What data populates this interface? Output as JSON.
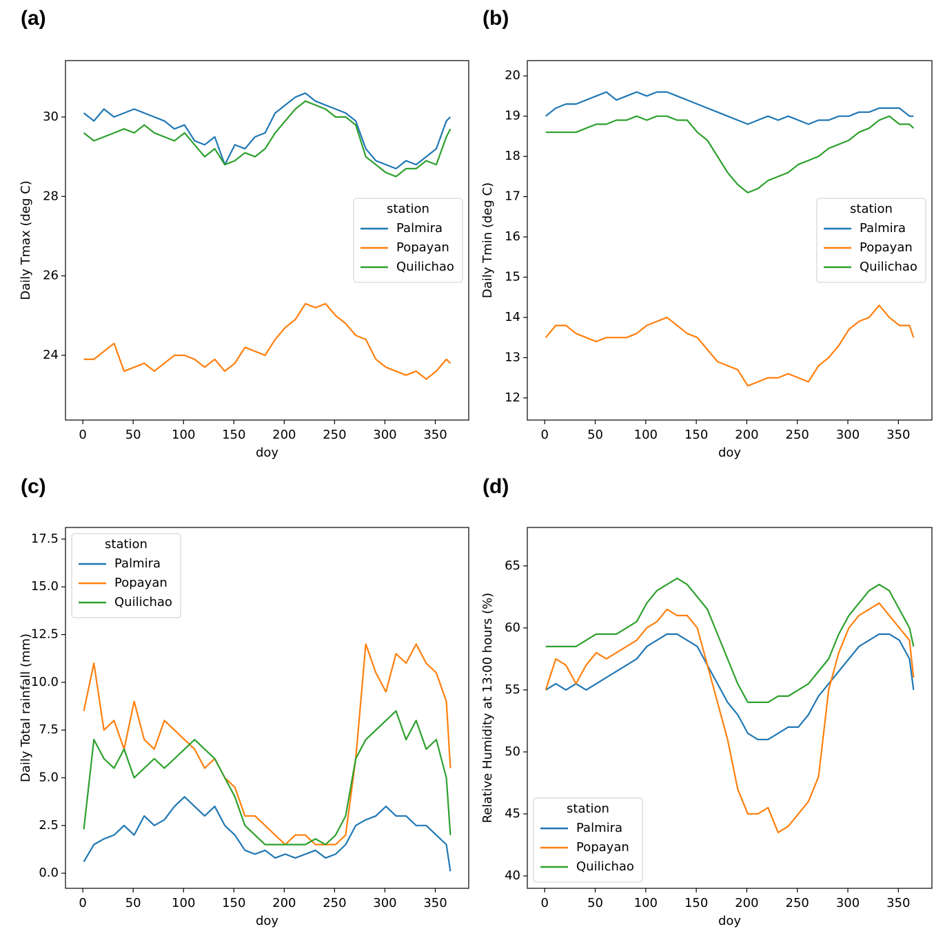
{
  "chart_data": [
    {
      "type": "line",
      "label": "(a)",
      "xlabel": "doy",
      "ylabel": "Daily Tmax (deg C)",
      "legend_title": "station",
      "legend": "center right",
      "x": [
        1,
        11,
        21,
        31,
        41,
        51,
        61,
        71,
        81,
        91,
        101,
        111,
        121,
        131,
        141,
        151,
        161,
        171,
        181,
        191,
        201,
        211,
        221,
        231,
        241,
        251,
        261,
        271,
        281,
        291,
        301,
        311,
        321,
        331,
        341,
        351,
        361,
        365
      ],
      "xlim": [
        -17.2,
        383.2
      ],
      "xticks": [
        0,
        50,
        100,
        150,
        200,
        250,
        300,
        350
      ],
      "ylim": [
        22.37,
        31.42
      ],
      "yticks": [
        24,
        26,
        28,
        30
      ],
      "series": [
        {
          "name": "Palmira",
          "color": "#1f77b4",
          "values": [
            30.1,
            29.9,
            30.2,
            30.0,
            30.1,
            30.2,
            30.1,
            30.0,
            29.9,
            29.7,
            29.8,
            29.4,
            29.3,
            29.5,
            28.8,
            29.3,
            29.2,
            29.5,
            29.6,
            30.1,
            30.3,
            30.5,
            30.6,
            30.4,
            30.3,
            30.2,
            30.1,
            29.9,
            29.2,
            28.9,
            28.8,
            28.7,
            28.9,
            28.8,
            29.0,
            29.2,
            29.9,
            30.0
          ]
        },
        {
          "name": "Popayan",
          "color": "#ff7f0e",
          "values": [
            23.9,
            23.9,
            24.1,
            24.3,
            23.6,
            23.7,
            23.8,
            23.6,
            23.8,
            24.0,
            24.0,
            23.9,
            23.7,
            23.9,
            23.6,
            23.8,
            24.2,
            24.1,
            24.0,
            24.4,
            24.7,
            24.9,
            25.3,
            25.2,
            25.3,
            25.0,
            24.8,
            24.5,
            24.4,
            23.9,
            23.7,
            23.6,
            23.5,
            23.6,
            23.4,
            23.6,
            23.9,
            23.8
          ]
        },
        {
          "name": "Quilichao",
          "color": "#2ca02c",
          "values": [
            29.6,
            29.4,
            29.5,
            29.6,
            29.7,
            29.6,
            29.8,
            29.6,
            29.5,
            29.4,
            29.6,
            29.3,
            29.0,
            29.2,
            28.8,
            28.9,
            29.1,
            29.0,
            29.2,
            29.6,
            29.9,
            30.2,
            30.4,
            30.3,
            30.2,
            30.0,
            30.0,
            29.8,
            29.0,
            28.8,
            28.6,
            28.5,
            28.7,
            28.7,
            28.9,
            28.8,
            29.5,
            29.7
          ]
        }
      ]
    },
    {
      "type": "line",
      "label": "(b)",
      "xlabel": "doy",
      "ylabel": "Daily Tmin (deg C)",
      "legend_title": "station",
      "legend": "center right",
      "x": [
        1,
        11,
        21,
        31,
        41,
        51,
        61,
        71,
        81,
        91,
        101,
        111,
        121,
        131,
        141,
        151,
        161,
        171,
        181,
        191,
        201,
        211,
        221,
        231,
        241,
        251,
        261,
        271,
        281,
        291,
        301,
        311,
        321,
        331,
        341,
        351,
        361,
        365
      ],
      "xlim": [
        -17.2,
        383.2
      ],
      "xticks": [
        0,
        50,
        100,
        150,
        200,
        250,
        300,
        350
      ],
      "ylim": [
        11.45,
        20.38
      ],
      "yticks": [
        12,
        13,
        14,
        15,
        16,
        17,
        18,
        19,
        20
      ],
      "series": [
        {
          "name": "Palmira",
          "color": "#1f77b4",
          "values": [
            19.0,
            19.2,
            19.3,
            19.3,
            19.4,
            19.5,
            19.6,
            19.4,
            19.5,
            19.6,
            19.5,
            19.6,
            19.6,
            19.5,
            19.4,
            19.3,
            19.2,
            19.1,
            19.0,
            18.9,
            18.8,
            18.9,
            19.0,
            18.9,
            19.0,
            18.9,
            18.8,
            18.9,
            18.9,
            19.0,
            19.0,
            19.1,
            19.1,
            19.2,
            19.2,
            19.2,
            19.0,
            19.0
          ]
        },
        {
          "name": "Popayan",
          "color": "#ff7f0e",
          "values": [
            13.5,
            13.8,
            13.8,
            13.6,
            13.5,
            13.4,
            13.5,
            13.5,
            13.5,
            13.6,
            13.8,
            13.9,
            14.0,
            13.8,
            13.6,
            13.5,
            13.2,
            12.9,
            12.8,
            12.7,
            12.3,
            12.4,
            12.5,
            12.5,
            12.6,
            12.5,
            12.4,
            12.8,
            13.0,
            13.3,
            13.7,
            13.9,
            14.0,
            14.3,
            14.0,
            13.8,
            13.8,
            13.5
          ]
        },
        {
          "name": "Quilichao",
          "color": "#2ca02c",
          "values": [
            18.6,
            18.6,
            18.6,
            18.6,
            18.7,
            18.8,
            18.8,
            18.9,
            18.9,
            19.0,
            18.9,
            19.0,
            19.0,
            18.9,
            18.9,
            18.6,
            18.4,
            18.0,
            17.6,
            17.3,
            17.1,
            17.2,
            17.4,
            17.5,
            17.6,
            17.8,
            17.9,
            18.0,
            18.2,
            18.3,
            18.4,
            18.6,
            18.7,
            18.9,
            19.0,
            18.8,
            18.8,
            18.7
          ]
        }
      ]
    },
    {
      "type": "line",
      "label": "(c)",
      "xlabel": "doy",
      "ylabel": "Daily Total rainfall (mm)",
      "legend_title": "station",
      "legend": "upper left",
      "x": [
        1,
        11,
        21,
        31,
        41,
        51,
        61,
        71,
        81,
        91,
        101,
        111,
        121,
        131,
        141,
        151,
        161,
        171,
        181,
        191,
        201,
        211,
        221,
        231,
        241,
        251,
        261,
        271,
        281,
        291,
        301,
        311,
        321,
        331,
        341,
        351,
        361,
        365
      ],
      "xlim": [
        -17.2,
        383.2
      ],
      "xticks": [
        0,
        50,
        100,
        150,
        200,
        250,
        300,
        350
      ],
      "ylim": [
        -0.79,
        18.11
      ],
      "yticks": [
        {
          "value": 0,
          "label": "0.0"
        },
        2.5,
        {
          "value": 5,
          "label": "5.0"
        },
        7.5,
        {
          "value": 10,
          "label": "10.0"
        },
        12.5,
        {
          "value": 15,
          "label": "15.0"
        },
        17.5
      ],
      "series": [
        {
          "name": "Palmira",
          "color": "#1f77b4",
          "values": [
            0.6,
            1.5,
            1.8,
            2.0,
            2.5,
            2.0,
            3.0,
            2.5,
            2.8,
            3.5,
            4.0,
            3.5,
            3.0,
            3.5,
            2.5,
            2.0,
            1.2,
            1.0,
            1.2,
            0.8,
            1.0,
            0.8,
            1.0,
            1.2,
            0.8,
            1.0,
            1.5,
            2.5,
            2.8,
            3.0,
            3.5,
            3.0,
            3.0,
            2.5,
            2.5,
            2.0,
            1.5,
            0.1
          ]
        },
        {
          "name": "Popayan",
          "color": "#ff7f0e",
          "values": [
            8.5,
            11.0,
            7.5,
            8.0,
            6.5,
            9.0,
            7.0,
            6.5,
            8.0,
            7.5,
            7.0,
            6.5,
            5.5,
            6.0,
            5.0,
            4.5,
            3.0,
            3.0,
            2.5,
            2.0,
            1.5,
            2.0,
            2.0,
            1.5,
            1.5,
            1.5,
            2.0,
            6.0,
            12.0,
            10.5,
            9.5,
            11.5,
            11.0,
            12.0,
            11.0,
            10.5,
            9.0,
            5.5
          ]
        },
        {
          "name": "Quilichao",
          "color": "#2ca02c",
          "values": [
            2.3,
            7.0,
            6.0,
            5.5,
            6.5,
            5.0,
            5.5,
            6.0,
            5.5,
            6.0,
            6.5,
            7.0,
            6.5,
            6.0,
            5.0,
            4.0,
            2.5,
            2.0,
            1.5,
            1.5,
            1.5,
            1.5,
            1.5,
            1.8,
            1.5,
            2.0,
            3.0,
            6.0,
            7.0,
            7.5,
            8.0,
            8.5,
            7.0,
            8.0,
            6.5,
            7.0,
            5.0,
            2.0
          ]
        }
      ]
    },
    {
      "type": "line",
      "label": "(d)",
      "xlabel": "doy",
      "ylabel": "Relative Humidity at 13:00 hours (%)",
      "legend_title": "station",
      "legend": "lower left",
      "x": [
        1,
        11,
        21,
        31,
        41,
        51,
        61,
        71,
        81,
        91,
        101,
        111,
        121,
        131,
        141,
        151,
        161,
        171,
        181,
        191,
        201,
        211,
        221,
        231,
        241,
        251,
        261,
        271,
        281,
        291,
        301,
        311,
        321,
        331,
        341,
        351,
        361,
        365
      ],
      "xlim": [
        -17.2,
        383.2
      ],
      "xticks": [
        0,
        50,
        100,
        150,
        200,
        250,
        300,
        350
      ],
      "ylim": [
        39.0,
        68.1
      ],
      "yticks": [
        40,
        45,
        50,
        55,
        60,
        65
      ],
      "series": [
        {
          "name": "Palmira",
          "color": "#1f77b4",
          "values": [
            55.0,
            55.5,
            55.0,
            55.5,
            55.0,
            55.5,
            56.0,
            56.5,
            57.0,
            57.5,
            58.5,
            59.0,
            59.5,
            59.5,
            59.0,
            58.5,
            57.0,
            55.5,
            54.0,
            53.0,
            51.5,
            51.0,
            51.0,
            51.5,
            52.0,
            52.0,
            53.0,
            54.5,
            55.5,
            56.5,
            57.5,
            58.5,
            59.0,
            59.5,
            59.5,
            59.0,
            57.5,
            55.0
          ]
        },
        {
          "name": "Popayan",
          "color": "#ff7f0e",
          "values": [
            55.0,
            57.5,
            57.0,
            55.5,
            57.0,
            58.0,
            57.5,
            58.0,
            58.5,
            59.0,
            60.0,
            60.5,
            61.5,
            61.0,
            61.0,
            60.0,
            57.0,
            54.0,
            51.0,
            47.0,
            45.0,
            45.0,
            45.5,
            43.5,
            44.0,
            45.0,
            46.0,
            48.0,
            55.0,
            58.0,
            60.0,
            61.0,
            61.5,
            62.0,
            61.0,
            60.0,
            59.0,
            56.0
          ]
        },
        {
          "name": "Quilichao",
          "color": "#2ca02c",
          "values": [
            58.5,
            58.5,
            58.5,
            58.5,
            59.0,
            59.5,
            59.5,
            59.5,
            60.0,
            60.5,
            62.0,
            63.0,
            63.5,
            64.0,
            63.5,
            62.5,
            61.5,
            59.5,
            57.5,
            55.5,
            54.0,
            54.0,
            54.0,
            54.5,
            54.5,
            55.0,
            55.5,
            56.5,
            57.5,
            59.5,
            61.0,
            62.0,
            63.0,
            63.5,
            63.0,
            61.5,
            60.0,
            58.5
          ]
        }
      ]
    }
  ]
}
